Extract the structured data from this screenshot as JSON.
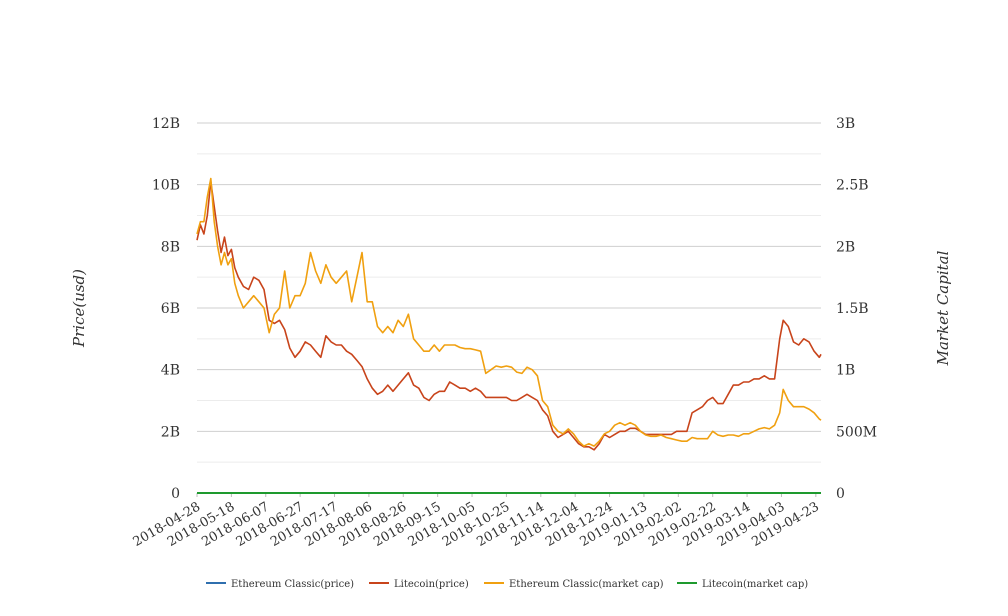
{
  "chart_data": {
    "type": "line",
    "title": "",
    "ylabel_left": "Price(usd)",
    "ylabel_right": "Market Capital",
    "left_ticks": [
      "0",
      "2B",
      "4B",
      "6B",
      "8B",
      "10B",
      "12B"
    ],
    "right_ticks": [
      "0",
      "500M",
      "1B",
      "1.5B",
      "2B",
      "2.5B",
      "3B"
    ],
    "ylim_left": [
      0,
      12000000000
    ],
    "ylim_right": [
      0,
      3000000000
    ],
    "x_start": "2018-04-28",
    "x_end": "2019-04-26",
    "x_tick_labels": [
      "2018-04-28",
      "2018-05-18",
      "2018-06-07",
      "2018-06-27",
      "2018-07-17",
      "2018-08-06",
      "2018-08-26",
      "2018-09-15",
      "2018-10-05",
      "2018-10-25",
      "2018-11-14",
      "2018-12-04",
      "2018-12-24",
      "2019-01-13",
      "2019-02-02",
      "2019-02-22",
      "2019-03-14",
      "2019-04-03",
      "2019-04-23"
    ],
    "grid": true,
    "legend_position": "bottom",
    "series": [
      {
        "name": "Ethereum Classic(price)",
        "axis": "left",
        "color": "#2f6fae",
        "points": [
          [
            "2018-04-28",
            0
          ],
          [
            "2019-04-26",
            0
          ]
        ]
      },
      {
        "name": "Litecoin(price)",
        "axis": "left",
        "color": "#c8441b",
        "points": [
          [
            "2018-04-28",
            8.2
          ],
          [
            "2018-04-30",
            8.7
          ],
          [
            "2018-05-02",
            8.4
          ],
          [
            "2018-05-04",
            9.0
          ],
          [
            "2018-05-06",
            10.1
          ],
          [
            "2018-05-08",
            9.3
          ],
          [
            "2018-05-10",
            8.5
          ],
          [
            "2018-05-12",
            7.8
          ],
          [
            "2018-05-14",
            8.3
          ],
          [
            "2018-05-16",
            7.7
          ],
          [
            "2018-05-18",
            7.9
          ],
          [
            "2018-05-20",
            7.3
          ],
          [
            "2018-05-22",
            7.0
          ],
          [
            "2018-05-25",
            6.7
          ],
          [
            "2018-05-28",
            6.6
          ],
          [
            "2018-05-31",
            7.0
          ],
          [
            "2018-06-03",
            6.9
          ],
          [
            "2018-06-06",
            6.6
          ],
          [
            "2018-06-09",
            5.6
          ],
          [
            "2018-06-12",
            5.5
          ],
          [
            "2018-06-15",
            5.6
          ],
          [
            "2018-06-18",
            5.3
          ],
          [
            "2018-06-21",
            4.7
          ],
          [
            "2018-06-24",
            4.4
          ],
          [
            "2018-06-27",
            4.6
          ],
          [
            "2018-06-30",
            4.9
          ],
          [
            "2018-07-03",
            4.8
          ],
          [
            "2018-07-06",
            4.6
          ],
          [
            "2018-07-09",
            4.4
          ],
          [
            "2018-07-12",
            5.1
          ],
          [
            "2018-07-15",
            4.9
          ],
          [
            "2018-07-18",
            4.8
          ],
          [
            "2018-07-21",
            4.8
          ],
          [
            "2018-07-24",
            4.6
          ],
          [
            "2018-07-27",
            4.5
          ],
          [
            "2018-07-30",
            4.3
          ],
          [
            "2018-08-02",
            4.1
          ],
          [
            "2018-08-05",
            3.7
          ],
          [
            "2018-08-08",
            3.4
          ],
          [
            "2018-08-11",
            3.2
          ],
          [
            "2018-08-14",
            3.3
          ],
          [
            "2018-08-17",
            3.5
          ],
          [
            "2018-08-20",
            3.3
          ],
          [
            "2018-08-23",
            3.5
          ],
          [
            "2018-08-26",
            3.7
          ],
          [
            "2018-08-29",
            3.9
          ],
          [
            "2018-09-01",
            3.5
          ],
          [
            "2018-09-04",
            3.4
          ],
          [
            "2018-09-07",
            3.1
          ],
          [
            "2018-09-10",
            3.0
          ],
          [
            "2018-09-13",
            3.2
          ],
          [
            "2018-09-16",
            3.3
          ],
          [
            "2018-09-19",
            3.3
          ],
          [
            "2018-09-22",
            3.6
          ],
          [
            "2018-09-25",
            3.5
          ],
          [
            "2018-09-28",
            3.4
          ],
          [
            "2018-10-01",
            3.4
          ],
          [
            "2018-10-04",
            3.3
          ],
          [
            "2018-10-07",
            3.4
          ],
          [
            "2018-10-10",
            3.3
          ],
          [
            "2018-10-13",
            3.1
          ],
          [
            "2018-10-16",
            3.1
          ],
          [
            "2018-10-19",
            3.1
          ],
          [
            "2018-10-22",
            3.1
          ],
          [
            "2018-10-25",
            3.1
          ],
          [
            "2018-10-28",
            3.0
          ],
          [
            "2018-10-31",
            3.0
          ],
          [
            "2018-11-03",
            3.1
          ],
          [
            "2018-11-06",
            3.2
          ],
          [
            "2018-11-09",
            3.1
          ],
          [
            "2018-11-12",
            3.0
          ],
          [
            "2018-11-15",
            2.7
          ],
          [
            "2018-11-18",
            2.5
          ],
          [
            "2018-11-21",
            2.0
          ],
          [
            "2018-11-24",
            1.8
          ],
          [
            "2018-11-27",
            1.9
          ],
          [
            "2018-11-30",
            2.0
          ],
          [
            "2018-12-03",
            1.8
          ],
          [
            "2018-12-06",
            1.6
          ],
          [
            "2018-12-09",
            1.5
          ],
          [
            "2018-12-12",
            1.5
          ],
          [
            "2018-12-15",
            1.4
          ],
          [
            "2018-12-18",
            1.6
          ],
          [
            "2018-12-21",
            1.9
          ],
          [
            "2018-12-24",
            1.8
          ],
          [
            "2018-12-27",
            1.9
          ],
          [
            "2018-12-30",
            2.0
          ],
          [
            "2019-01-02",
            2.0
          ],
          [
            "2019-01-05",
            2.1
          ],
          [
            "2019-01-08",
            2.1
          ],
          [
            "2019-01-11",
            2.0
          ],
          [
            "2019-01-14",
            1.9
          ],
          [
            "2019-01-17",
            1.9
          ],
          [
            "2019-01-20",
            1.9
          ],
          [
            "2019-01-23",
            1.9
          ],
          [
            "2019-01-26",
            1.9
          ],
          [
            "2019-01-29",
            1.9
          ],
          [
            "2019-02-01",
            2.0
          ],
          [
            "2019-02-04",
            2.0
          ],
          [
            "2019-02-07",
            2.0
          ],
          [
            "2019-02-10",
            2.6
          ],
          [
            "2019-02-13",
            2.7
          ],
          [
            "2019-02-16",
            2.8
          ],
          [
            "2019-02-19",
            3.0
          ],
          [
            "2019-02-22",
            3.1
          ],
          [
            "2019-02-25",
            2.9
          ],
          [
            "2019-02-28",
            2.9
          ],
          [
            "2019-03-03",
            3.2
          ],
          [
            "2019-03-06",
            3.5
          ],
          [
            "2019-03-09",
            3.5
          ],
          [
            "2019-03-12",
            3.6
          ],
          [
            "2019-03-15",
            3.6
          ],
          [
            "2019-03-18",
            3.7
          ],
          [
            "2019-03-21",
            3.7
          ],
          [
            "2019-03-24",
            3.8
          ],
          [
            "2019-03-27",
            3.7
          ],
          [
            "2019-03-30",
            3.7
          ],
          [
            "2019-04-02",
            5.0
          ],
          [
            "2019-04-04",
            5.6
          ],
          [
            "2019-04-07",
            5.4
          ],
          [
            "2019-04-10",
            4.9
          ],
          [
            "2019-04-13",
            4.8
          ],
          [
            "2019-04-16",
            5.0
          ],
          [
            "2019-04-19",
            4.9
          ],
          [
            "2019-04-22",
            4.6
          ],
          [
            "2019-04-25",
            4.4
          ],
          [
            "2019-04-26",
            4.5
          ]
        ]
      },
      {
        "name": "Ethereum Classic(market cap)",
        "axis": "right",
        "color": "#f0a010",
        "points": [
          [
            "2018-04-28",
            2.1
          ],
          [
            "2018-04-30",
            2.2
          ],
          [
            "2018-05-02",
            2.2
          ],
          [
            "2018-05-04",
            2.4
          ],
          [
            "2018-05-06",
            2.55
          ],
          [
            "2018-05-08",
            2.2
          ],
          [
            "2018-05-10",
            2.0
          ],
          [
            "2018-05-12",
            1.85
          ],
          [
            "2018-05-14",
            1.95
          ],
          [
            "2018-05-16",
            1.85
          ],
          [
            "2018-05-18",
            1.9
          ],
          [
            "2018-05-20",
            1.7
          ],
          [
            "2018-05-22",
            1.6
          ],
          [
            "2018-05-25",
            1.5
          ],
          [
            "2018-05-28",
            1.55
          ],
          [
            "2018-05-31",
            1.6
          ],
          [
            "2018-06-03",
            1.55
          ],
          [
            "2018-06-06",
            1.5
          ],
          [
            "2018-06-09",
            1.3
          ],
          [
            "2018-06-12",
            1.45
          ],
          [
            "2018-06-15",
            1.5
          ],
          [
            "2018-06-18",
            1.8
          ],
          [
            "2018-06-21",
            1.5
          ],
          [
            "2018-06-24",
            1.6
          ],
          [
            "2018-06-27",
            1.6
          ],
          [
            "2018-06-30",
            1.7
          ],
          [
            "2018-07-03",
            1.95
          ],
          [
            "2018-07-06",
            1.8
          ],
          [
            "2018-07-09",
            1.7
          ],
          [
            "2018-07-12",
            1.85
          ],
          [
            "2018-07-15",
            1.75
          ],
          [
            "2018-07-18",
            1.7
          ],
          [
            "2018-07-21",
            1.75
          ],
          [
            "2018-07-24",
            1.8
          ],
          [
            "2018-07-27",
            1.55
          ],
          [
            "2018-07-30",
            1.75
          ],
          [
            "2018-08-02",
            1.95
          ],
          [
            "2018-08-05",
            1.55
          ],
          [
            "2018-08-08",
            1.55
          ],
          [
            "2018-08-11",
            1.35
          ],
          [
            "2018-08-14",
            1.3
          ],
          [
            "2018-08-17",
            1.35
          ],
          [
            "2018-08-20",
            1.3
          ],
          [
            "2018-08-23",
            1.4
          ],
          [
            "2018-08-26",
            1.35
          ],
          [
            "2018-08-29",
            1.45
          ],
          [
            "2018-09-01",
            1.25
          ],
          [
            "2018-09-04",
            1.2
          ],
          [
            "2018-09-07",
            1.15
          ],
          [
            "2018-09-10",
            1.15
          ],
          [
            "2018-09-13",
            1.2
          ],
          [
            "2018-09-16",
            1.15
          ],
          [
            "2018-09-19",
            1.2
          ],
          [
            "2018-09-22",
            1.2
          ],
          [
            "2018-09-25",
            1.2
          ],
          [
            "2018-09-28",
            1.18
          ],
          [
            "2018-10-01",
            1.17
          ],
          [
            "2018-10-04",
            1.17
          ],
          [
            "2018-10-07",
            1.16
          ],
          [
            "2018-10-10",
            1.15
          ],
          [
            "2018-10-13",
            0.97
          ],
          [
            "2018-10-16",
            1.0
          ],
          [
            "2018-10-19",
            1.03
          ],
          [
            "2018-10-22",
            1.02
          ],
          [
            "2018-10-25",
            1.03
          ],
          [
            "2018-10-28",
            1.02
          ],
          [
            "2018-10-31",
            0.98
          ],
          [
            "2018-11-03",
            0.97
          ],
          [
            "2018-11-06",
            1.02
          ],
          [
            "2018-11-09",
            1.0
          ],
          [
            "2018-11-12",
            0.95
          ],
          [
            "2018-11-15",
            0.75
          ],
          [
            "2018-11-18",
            0.7
          ],
          [
            "2018-11-21",
            0.55
          ],
          [
            "2018-11-24",
            0.5
          ],
          [
            "2018-11-27",
            0.48
          ],
          [
            "2018-11-30",
            0.52
          ],
          [
            "2018-12-03",
            0.48
          ],
          [
            "2018-12-06",
            0.42
          ],
          [
            "2018-12-09",
            0.38
          ],
          [
            "2018-12-12",
            0.4
          ],
          [
            "2018-12-15",
            0.38
          ],
          [
            "2018-12-18",
            0.42
          ],
          [
            "2018-12-21",
            0.48
          ],
          [
            "2018-12-24",
            0.5
          ],
          [
            "2018-12-27",
            0.55
          ],
          [
            "2018-12-30",
            0.57
          ],
          [
            "2019-01-02",
            0.55
          ],
          [
            "2019-01-05",
            0.57
          ],
          [
            "2019-01-08",
            0.55
          ],
          [
            "2019-01-11",
            0.5
          ],
          [
            "2019-01-14",
            0.47
          ],
          [
            "2019-01-17",
            0.46
          ],
          [
            "2019-01-20",
            0.46
          ],
          [
            "2019-01-23",
            0.47
          ],
          [
            "2019-01-26",
            0.45
          ],
          [
            "2019-01-29",
            0.44
          ],
          [
            "2019-02-01",
            0.43
          ],
          [
            "2019-02-04",
            0.42
          ],
          [
            "2019-02-07",
            0.42
          ],
          [
            "2019-02-10",
            0.45
          ],
          [
            "2019-02-13",
            0.44
          ],
          [
            "2019-02-16",
            0.44
          ],
          [
            "2019-02-19",
            0.44
          ],
          [
            "2019-02-22",
            0.5
          ],
          [
            "2019-02-25",
            0.47
          ],
          [
            "2019-02-28",
            0.46
          ],
          [
            "2019-03-03",
            0.47
          ],
          [
            "2019-03-06",
            0.47
          ],
          [
            "2019-03-09",
            0.46
          ],
          [
            "2019-03-12",
            0.48
          ],
          [
            "2019-03-15",
            0.48
          ],
          [
            "2019-03-18",
            0.5
          ],
          [
            "2019-03-21",
            0.52
          ],
          [
            "2019-03-24",
            0.53
          ],
          [
            "2019-03-27",
            0.52
          ],
          [
            "2019-03-30",
            0.55
          ],
          [
            "2019-04-02",
            0.65
          ],
          [
            "2019-04-04",
            0.84
          ],
          [
            "2019-04-07",
            0.75
          ],
          [
            "2019-04-10",
            0.7
          ],
          [
            "2019-04-13",
            0.7
          ],
          [
            "2019-04-16",
            0.7
          ],
          [
            "2019-04-19",
            0.68
          ],
          [
            "2019-04-22",
            0.65
          ],
          [
            "2019-04-25",
            0.6
          ],
          [
            "2019-04-26",
            0.59
          ]
        ]
      },
      {
        "name": "Litecoin(market cap)",
        "axis": "right",
        "color": "#1e9a2e",
        "points": [
          [
            "2018-04-28",
            0
          ],
          [
            "2019-04-26",
            0
          ]
        ]
      }
    ]
  }
}
